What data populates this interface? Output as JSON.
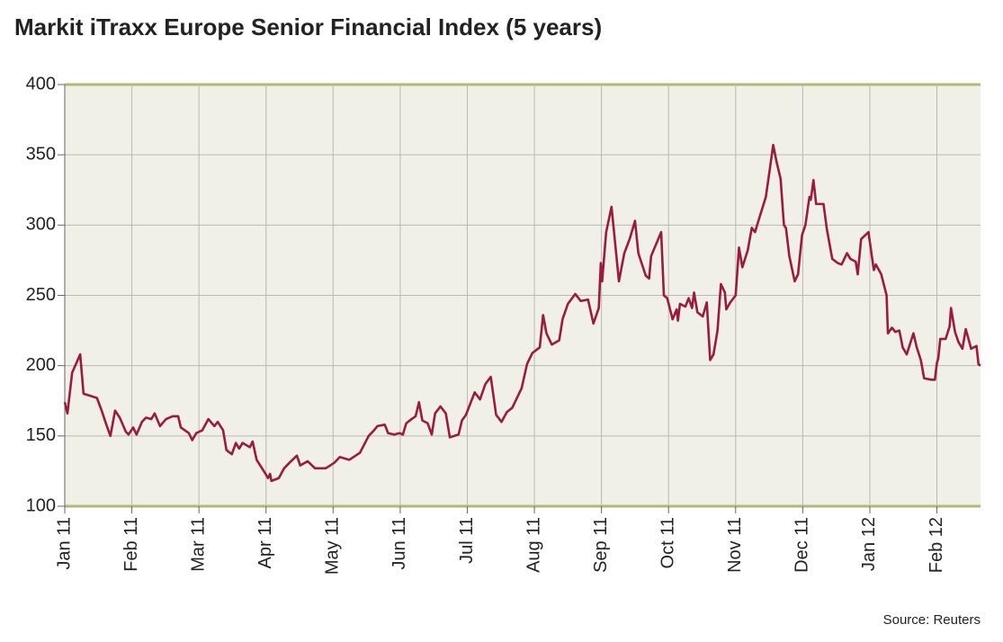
{
  "chart_data": {
    "type": "line",
    "title": "Markit iTraxx Europe Senior Financial Index (5 years)",
    "source": "Source: Reuters",
    "color": "#9b1b3f",
    "grid": true,
    "xlim": [
      0,
      13.65
    ],
    "ylim": [
      100,
      400
    ],
    "yticks": [
      100,
      150,
      200,
      250,
      300,
      350,
      400
    ],
    "xticks": [
      {
        "value": 0,
        "label": "Jan 11"
      },
      {
        "value": 1,
        "label": "Feb 11"
      },
      {
        "value": 2,
        "label": "Mar 11"
      },
      {
        "value": 3,
        "label": "Apr 11"
      },
      {
        "value": 4,
        "label": "May 11"
      },
      {
        "value": 5,
        "label": "Jun 11"
      },
      {
        "value": 6,
        "label": "Jul 11"
      },
      {
        "value": 7,
        "label": "Aug 11"
      },
      {
        "value": 8,
        "label": "Sep 11"
      },
      {
        "value": 9,
        "label": "Oct 11"
      },
      {
        "value": 10,
        "label": "Nov 11"
      },
      {
        "value": 11,
        "label": "Dec 11"
      },
      {
        "value": 12,
        "label": "Jan 12"
      },
      {
        "value": 13,
        "label": "Feb 12"
      }
    ],
    "x": [
      0,
      0.04,
      0.11,
      0.23,
      0.28,
      0.35,
      0.48,
      0.55,
      0.62,
      0.68,
      0.75,
      0.82,
      0.91,
      0.95,
      1.02,
      1.07,
      1.15,
      1.21,
      1.29,
      1.34,
      1.42,
      1.51,
      1.61,
      1.69,
      1.73,
      1.85,
      1.9,
      1.96,
      2.05,
      2.14,
      2.23,
      2.28,
      2.36,
      2.41,
      2.49,
      2.55,
      2.6,
      2.65,
      2.76,
      2.8,
      2.86,
      2.98,
      3.03,
      3.06,
      3.08,
      3.19,
      3.27,
      3.35,
      3.46,
      3.51,
      3.62,
      3.73,
      3.89,
      4.02,
      4.1,
      4.24,
      4.4,
      4.53,
      4.61,
      4.66,
      4.77,
      4.82,
      4.91,
      4.99,
      5.04,
      5.09,
      5.17,
      5.23,
      5.28,
      5.33,
      5.41,
      5.47,
      5.52,
      5.6,
      5.68,
      5.74,
      5.87,
      5.92,
      5.98,
      6.11,
      6.19,
      6.27,
      6.35,
      6.43,
      6.51,
      6.59,
      6.67,
      6.73,
      6.81,
      6.89,
      6.97,
      7.08,
      7.13,
      7.18,
      7.26,
      7.37,
      7.42,
      7.5,
      7.61,
      7.69,
      7.8,
      7.88,
      7.96,
      7.99,
      8.01,
      8.07,
      8.15,
      8.26,
      8.34,
      8.42,
      8.5,
      8.55,
      8.66,
      8.71,
      8.74,
      8.82,
      8.89,
      8.93,
      8.98,
      9.06,
      9.12,
      9.14,
      9.17,
      9.25,
      9.3,
      9.35,
      9.38,
      9.43,
      9.51,
      9.57,
      9.62,
      9.67,
      9.73,
      9.78,
      9.84,
      9.86,
      9.92,
      10.0,
      10.05,
      10.1,
      10.18,
      10.24,
      10.29,
      10.32,
      10.45,
      10.51,
      10.56,
      10.61,
      10.67,
      10.72,
      10.75,
      10.8,
      10.88,
      10.93,
      10.99,
      11.04,
      11.1,
      11.12,
      11.16,
      11.2,
      11.31,
      11.36,
      11.44,
      11.52,
      11.58,
      11.66,
      11.71,
      11.79,
      11.82,
      11.87,
      11.98,
      12.03,
      12.06,
      12.09,
      12.17,
      12.25,
      12.27,
      12.33,
      12.38,
      12.44,
      12.49,
      12.55,
      12.65,
      12.7,
      12.76,
      12.81,
      12.92,
      12.97,
      13.0,
      13.02,
      13.05,
      13.13,
      13.19,
      13.21,
      13.27,
      13.32,
      13.38,
      13.43,
      13.46,
      13.51,
      13.59,
      13.62,
      13.65
    ],
    "values": [
      174,
      166,
      195,
      208,
      180,
      179,
      177,
      168,
      158,
      150,
      168,
      163,
      153,
      151,
      156,
      151,
      160,
      163,
      162,
      166,
      157,
      162,
      164,
      164,
      156,
      152,
      147,
      152,
      154,
      162,
      157,
      160,
      154,
      140,
      137,
      145,
      141,
      145,
      142,
      146,
      133,
      124,
      120,
      123,
      118,
      120,
      127,
      131,
      136,
      129,
      132,
      127,
      127,
      131,
      135,
      133,
      138,
      150,
      154,
      157,
      158,
      152,
      151,
      152,
      151,
      159,
      162,
      164,
      174,
      161,
      159,
      151,
      166,
      171,
      166,
      149,
      151,
      161,
      165,
      181,
      176,
      187,
      192,
      165,
      160,
      167,
      170,
      176,
      184,
      201,
      209,
      213,
      236,
      223,
      215,
      218,
      233,
      244,
      251,
      246,
      247,
      230,
      241,
      273,
      260,
      295,
      313,
      260,
      280,
      290,
      303,
      280,
      264,
      262,
      278,
      287,
      295,
      250,
      248,
      233,
      240,
      232,
      244,
      242,
      248,
      241,
      252,
      238,
      235,
      245,
      204,
      208,
      225,
      258,
      252,
      240,
      245,
      250,
      284,
      270,
      282,
      298,
      295,
      300,
      320,
      340,
      357,
      345,
      333,
      300,
      298,
      278,
      260,
      265,
      293,
      300,
      320,
      318,
      332,
      315,
      315,
      297,
      276,
      273,
      272,
      280,
      276,
      274,
      265,
      290,
      295,
      278,
      268,
      272,
      265,
      250,
      223,
      227,
      224,
      225,
      213,
      208,
      223,
      213,
      204,
      191,
      190,
      190,
      202,
      205,
      219,
      219,
      228,
      241,
      224,
      217,
      212,
      226,
      221,
      212,
      214,
      201,
      200
    ]
  }
}
